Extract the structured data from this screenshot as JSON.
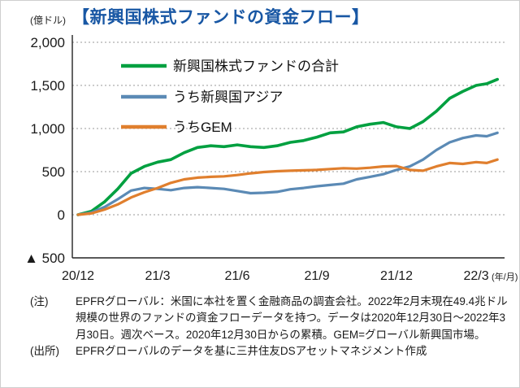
{
  "header": {
    "unit_label": "(億ドル)",
    "title": "【新興国株式ファンドの資金フロー】"
  },
  "notes": {
    "note_label": "(注)",
    "note_text": "EPFRグローバル：米国に本社を置く金融商品の調査会社。2022年2月末現在49.4兆ドル規模の世界のファンドの資金フローデータを持つ。データは2020年12月30日～2022年3月30日。週次ベース。2020年12月30日からの累積。GEM=グローバル新興国市場。",
    "source_label": "(出所)",
    "source_text": "EPFRグローバルのデータを基に三井住友DSアセットマネジメント作成"
  },
  "chart_data": {
    "type": "line",
    "title": "【新興国株式ファンドの資金フロー】",
    "ylabel": "(億ドル)",
    "x_unit_label": "(年/月)",
    "xlim": [
      0,
      16.1
    ],
    "ylim": [
      -500,
      2000
    ],
    "grid": "horizontal-dotted",
    "legend_position": "top-left-inside",
    "x_axis_note": "months elapsed since 2020/12 (weekly cumulative flows, 2020/12/30 - 2022/3/30)",
    "yticks": [
      {
        "value": 2000,
        "label": "2,000"
      },
      {
        "value": 1500,
        "label": "1,500"
      },
      {
        "value": 1000,
        "label": "1,000"
      },
      {
        "value": 500,
        "label": "500"
      },
      {
        "value": 0,
        "label": "0"
      },
      {
        "value": -500,
        "label": "▲ 500"
      }
    ],
    "xticks": [
      {
        "value": 0,
        "label": "20/12"
      },
      {
        "value": 3,
        "label": "21/3"
      },
      {
        "value": 6,
        "label": "21/6"
      },
      {
        "value": 9,
        "label": "21/9"
      },
      {
        "value": 12,
        "label": "21/12"
      },
      {
        "value": 15,
        "label": "22/3"
      }
    ],
    "x": [
      0,
      0.5,
      1,
      1.5,
      2,
      2.5,
      3,
      3.5,
      4,
      4.5,
      5,
      5.5,
      6,
      6.5,
      7,
      7.5,
      8,
      8.5,
      9,
      9.5,
      10,
      10.5,
      11,
      11.5,
      12,
      12.5,
      13,
      13.5,
      14,
      14.5,
      15,
      15.4,
      15.8
    ],
    "series": [
      {
        "name": "新興国株式ファンドの合計",
        "color": "#00a040",
        "values": [
          0,
          40,
          150,
          300,
          480,
          560,
          610,
          640,
          720,
          780,
          800,
          790,
          810,
          790,
          780,
          800,
          840,
          860,
          900,
          950,
          960,
          1020,
          1050,
          1070,
          1020,
          1000,
          1080,
          1200,
          1350,
          1430,
          1500,
          1520,
          1570
        ]
      },
      {
        "name": "うち新興国アジア",
        "color": "#5b8ab5",
        "values": [
          0,
          25,
          90,
          180,
          280,
          310,
          300,
          285,
          310,
          320,
          310,
          300,
          275,
          250,
          255,
          265,
          295,
          310,
          330,
          345,
          360,
          410,
          440,
          470,
          520,
          560,
          640,
          750,
          840,
          890,
          920,
          910,
          950
        ]
      },
      {
        "name": "うちGEM",
        "color": "#e07f2e",
        "values": [
          0,
          15,
          60,
          120,
          200,
          260,
          310,
          370,
          410,
          430,
          440,
          445,
          460,
          480,
          495,
          505,
          510,
          515,
          520,
          530,
          540,
          535,
          545,
          560,
          565,
          520,
          510,
          560,
          600,
          590,
          610,
          600,
          640
        ]
      }
    ]
  }
}
